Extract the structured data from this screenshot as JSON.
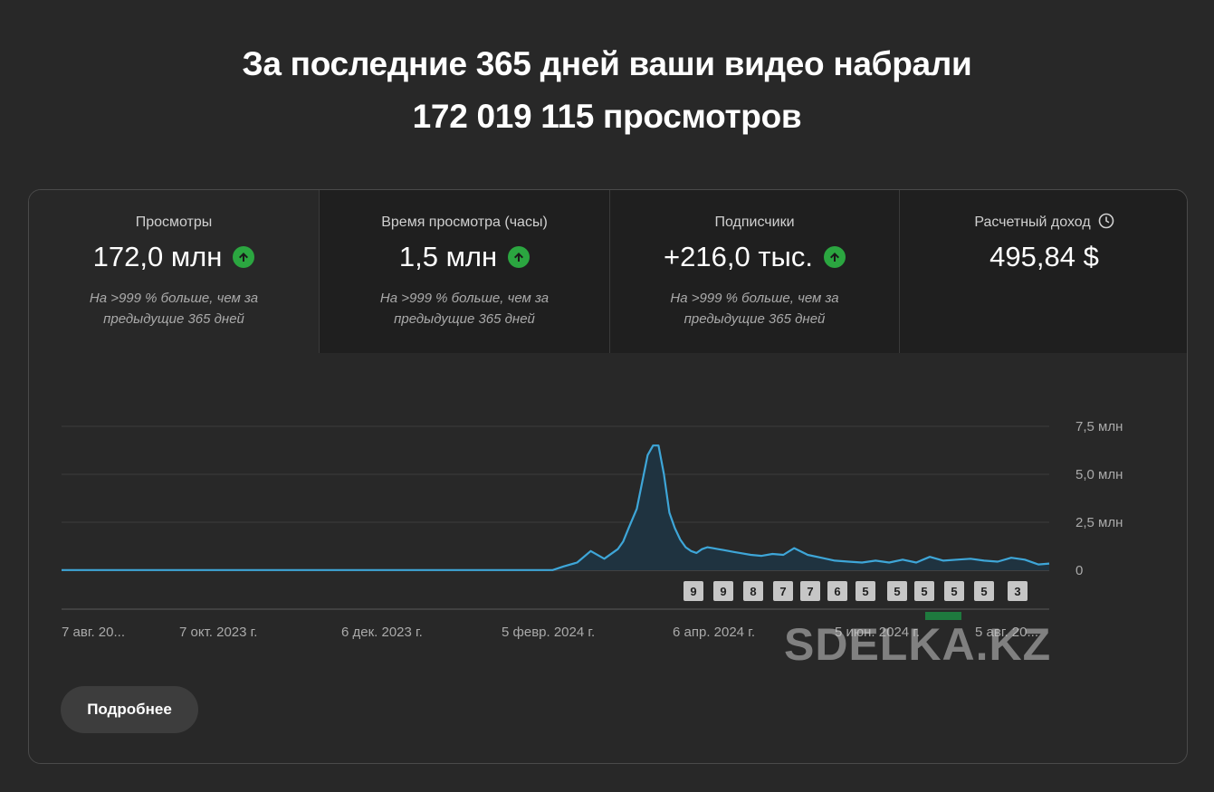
{
  "headline": {
    "line1": "За последние 365 дней ваши видео набрали",
    "line2": "172 019 115 просмотров"
  },
  "tabs": [
    {
      "label": "Просмотры",
      "value": "172,0 млн",
      "trend_icon": "arrow-up-circle-icon",
      "sub": "На >999 % больше, чем за предыдущие 365 дней",
      "selected": true
    },
    {
      "label": "Время просмотра (часы)",
      "value": "1,5 млн",
      "trend_icon": "arrow-up-circle-icon",
      "sub": "На >999 % больше, чем за предыдущие 365 дней",
      "selected": false
    },
    {
      "label": "Подписчики",
      "value": "+216,0 тыс.",
      "trend_icon": "arrow-up-circle-icon",
      "sub": "На >999 % больше, чем за предыдущие 365 дней",
      "selected": false
    },
    {
      "label": "Расчетный доход",
      "label_icon": "clock-icon",
      "value": "495,84 $",
      "selected": false
    }
  ],
  "colors": {
    "line": "#3ea6d8",
    "area": "#1f3340",
    "trend_up": "#2ba640",
    "marker_bg": "#c6c6c6",
    "highlight": "#1e7a3e"
  },
  "chart_data": {
    "type": "area",
    "ylim": [
      0,
      7.5
    ],
    "yunit": "млн",
    "y_ticks": [
      "7,5 млн",
      "5,0 млн",
      "2,5 млн",
      "0"
    ],
    "x_tick_labels": [
      "7 авг. 20...",
      "7 окт. 2023 г.",
      "6 дек. 2023 г.",
      "5 февр. 2024 г.",
      "6 апр. 2024 г.",
      "5 июн. 2024 г.",
      "5 авг. 20..."
    ],
    "series": [
      {
        "x_day": [
          0,
          181,
          185,
          190,
          195,
          200,
          205,
          207,
          209,
          212,
          214,
          216,
          218,
          220,
          222,
          224,
          226,
          228,
          230,
          232,
          234,
          236,
          238,
          240,
          242,
          244,
          246,
          248,
          250,
          254,
          258,
          262,
          266,
          270,
          275,
          280,
          285,
          290,
          295,
          300,
          305,
          310,
          315,
          320,
          325,
          330,
          335,
          340,
          345,
          350,
          355,
          360,
          364
        ],
        "values": [
          0.01,
          0.01,
          0.2,
          0.4,
          1.0,
          0.6,
          1.1,
          1.5,
          2.2,
          3.2,
          4.6,
          6.0,
          6.5,
          6.5,
          5.0,
          3.0,
          2.2,
          1.6,
          1.2,
          1.0,
          0.9,
          1.1,
          1.2,
          1.15,
          1.1,
          1.05,
          1.0,
          0.95,
          0.9,
          0.8,
          0.75,
          0.85,
          0.8,
          1.15,
          0.8,
          0.65,
          0.5,
          0.45,
          0.4,
          0.5,
          0.4,
          0.55,
          0.4,
          0.7,
          0.5,
          0.55,
          0.6,
          0.5,
          0.45,
          0.65,
          0.55,
          0.3,
          0.35
        ]
      }
    ],
    "video_markers": [
      "9",
      "9",
      "8",
      "7",
      "7",
      "6",
      "5",
      "5",
      "5",
      "5",
      "5",
      "3"
    ]
  },
  "button": {
    "label": "Подробнее"
  },
  "watermark": "SDELKA.KZ"
}
